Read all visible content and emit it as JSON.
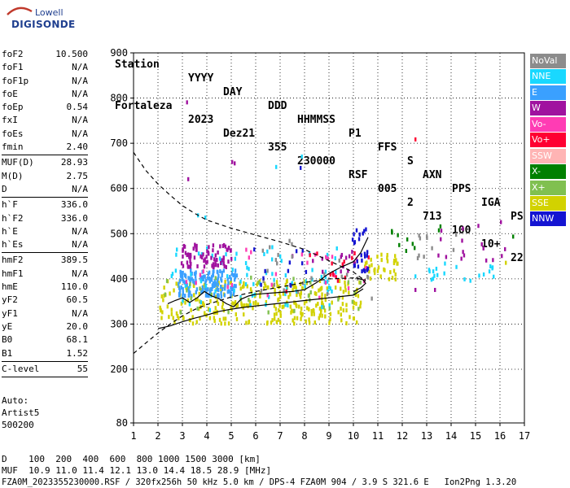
{
  "logo": {
    "line1": "Lowell",
    "line2": "DIGISONDE"
  },
  "header": {
    "labels": [
      "Station",
      "YYYY",
      "DAY",
      "DDD",
      "HHMMSS",
      "P1",
      "FFS",
      "S",
      "AXN",
      "PPS",
      "IGA",
      "PS"
    ],
    "values": [
      "Fortaleza",
      "2023",
      "Dez21",
      "355",
      "230000",
      "RSF",
      "005",
      "2",
      "713",
      "100",
      "10+",
      "22"
    ]
  },
  "params": [
    {
      "k": "foF2",
      "v": "10.500"
    },
    {
      "k": "foF1",
      "v": "N/A"
    },
    {
      "k": "foF1p",
      "v": "N/A"
    },
    {
      "k": "foE",
      "v": "N/A"
    },
    {
      "k": "foEp",
      "v": "0.54"
    },
    {
      "k": "fxI",
      "v": "N/A"
    },
    {
      "k": "foEs",
      "v": "N/A"
    },
    {
      "k": "fmin",
      "v": "2.40"
    },
    {
      "sep": true
    },
    {
      "k": "MUF(D)",
      "v": "28.93"
    },
    {
      "k": "M(D)",
      "v": "2.75"
    },
    {
      "k": "D",
      "v": "N/A"
    },
    {
      "sep": true
    },
    {
      "k": "h`F",
      "v": "336.0"
    },
    {
      "k": "h`F2",
      "v": "336.0"
    },
    {
      "k": "h`E",
      "v": "N/A"
    },
    {
      "k": "h`Es",
      "v": "N/A"
    },
    {
      "sep": true
    },
    {
      "k": "hmF2",
      "v": "389.5"
    },
    {
      "k": "hmF1",
      "v": "N/A"
    },
    {
      "k": "hmE",
      "v": "110.0"
    },
    {
      "k": "yF2",
      "v": "60.5"
    },
    {
      "k": "yF1",
      "v": "N/A"
    },
    {
      "k": "yE",
      "v": "20.0"
    },
    {
      "k": "B0",
      "v": "68.1"
    },
    {
      "k": "B1",
      "v": "1.52"
    },
    {
      "sep": true
    },
    {
      "k": "C-level",
      "v": "55"
    },
    {
      "sep": true
    }
  ],
  "auto": {
    "line1": "Auto:",
    "line2": "Artist5",
    "line3": "500200"
  },
  "legend": [
    {
      "name": "NoVal",
      "color": "#8c8c8c"
    },
    {
      "name": "NNE",
      "color": "#19d8ff"
    },
    {
      "name": "E",
      "color": "#3aa0ff"
    },
    {
      "name": "W",
      "color": "#a0129f"
    },
    {
      "name": "Vo-",
      "color": "#ff3cb4"
    },
    {
      "name": "Vo+",
      "color": "#ff0032"
    },
    {
      "name": "SSW",
      "color": "#ffb4b4"
    },
    {
      "name": "X-",
      "color": "#008000"
    },
    {
      "name": "X+",
      "color": "#80c050"
    },
    {
      "name": "SSE",
      "color": "#d2d200"
    },
    {
      "name": "NNW",
      "color": "#1414d2"
    }
  ],
  "footer": {
    "d_line": "D    100  200  400  600  800 1000 1500 3000 [km]",
    "muf_line": "MUF  10.9 11.0 11.4 12.1 13.0 14.4 18.5 28.9 [MHz]",
    "source_line": "FZA0M_2023355230000.RSF / 320fx256h 50 kHz 5.0 km / DPS-4 FZA0M 904 / 3.9 S 321.6 E   Ion2Png 1.3.20"
  },
  "chart_data": {
    "type": "scatter",
    "title": "",
    "xlabel": "",
    "ylabel": "",
    "xlim": [
      1,
      17
    ],
    "ylim": [
      80,
      900
    ],
    "grid": true,
    "xticks": [
      "1",
      "2",
      "3",
      "4",
      "5",
      "6",
      "7",
      "8",
      "9",
      "10",
      "11",
      "12",
      "13",
      "14",
      "15",
      "16",
      "17"
    ],
    "yticks": [
      "80",
      "200",
      "300",
      "400",
      "500",
      "600",
      "700",
      "800",
      "900"
    ],
    "ytick_values": [
      80,
      200,
      300,
      400,
      500,
      600,
      700,
      800,
      900
    ],
    "clusters": [
      {
        "color": "#d2d200",
        "x": [
          2.0,
          10.3
        ],
        "y": [
          305,
          400
        ],
        "n": 300
      },
      {
        "color": "#d2d200",
        "x": [
          10.3,
          11.8
        ],
        "y": [
          400,
          460
        ],
        "n": 35
      },
      {
        "color": "#3aa0ff",
        "x": [
          2.8,
          5.2
        ],
        "y": [
          365,
          425
        ],
        "n": 150
      },
      {
        "color": "#19d8ff",
        "x": [
          2.5,
          9.5
        ],
        "y": [
          335,
          480
        ],
        "n": 80
      },
      {
        "color": "#19d8ff",
        "x": [
          13.0,
          15.8
        ],
        "y": [
          400,
          440
        ],
        "n": 20
      },
      {
        "color": "#a0129f",
        "x": [
          2.9,
          5.0
        ],
        "y": [
          430,
          480
        ],
        "n": 80
      },
      {
        "color": "#a0129f",
        "x": [
          13.2,
          16.2
        ],
        "y": [
          440,
          525
        ],
        "n": 16
      },
      {
        "color": "#a0129f",
        "x": [
          7.0,
          10.5
        ],
        "y": [
          420,
          470
        ],
        "n": 15
      },
      {
        "color": "#ff3cb4",
        "x": [
          3.0,
          10.5
        ],
        "y": [
          360,
          480
        ],
        "n": 25
      },
      {
        "color": "#ff0032",
        "x": [
          7.2,
          10.6
        ],
        "y": [
          375,
          470
        ],
        "n": 15
      },
      {
        "color": "#8c8c8c",
        "x": [
          5.3,
          10.8
        ],
        "y": [
          360,
          500
        ],
        "n": 25
      },
      {
        "color": "#8c8c8c",
        "x": [
          12.4,
          14.2
        ],
        "y": [
          450,
          510
        ],
        "n": 10
      },
      {
        "color": "#1414d2",
        "x": [
          9.9,
          10.6
        ],
        "y": [
          420,
          515
        ],
        "n": 25
      },
      {
        "color": "#1414d2",
        "x": [
          5.4,
          8.4
        ],
        "y": [
          380,
          470
        ],
        "n": 12
      },
      {
        "color": "#008000",
        "x": [
          11.4,
          13.6
        ],
        "y": [
          465,
          525
        ],
        "n": 10
      },
      {
        "color": "#80c050",
        "x": [
          2.0,
          10.5
        ],
        "y": [
          330,
          410
        ],
        "n": 30
      }
    ],
    "sparse_points": [
      {
        "x": 3.15,
        "y": 795,
        "color": "#a0129f"
      },
      {
        "x": 3.2,
        "y": 625,
        "color": "#a0129f"
      },
      {
        "x": 5.0,
        "y": 663,
        "color": "#a0129f"
      },
      {
        "x": 5.1,
        "y": 660,
        "color": "#a0129f"
      },
      {
        "x": 12.5,
        "y": 713,
        "color": "#ff0032"
      },
      {
        "x": 7.85,
        "y": 675,
        "color": "#19d8ff"
      },
      {
        "x": 7.8,
        "y": 650,
        "color": "#1414d2"
      },
      {
        "x": 6.8,
        "y": 652,
        "color": "#19d8ff"
      },
      {
        "x": 3.6,
        "y": 545,
        "color": "#19d8ff"
      },
      {
        "x": 3.9,
        "y": 540,
        "color": "#19d8ff"
      },
      {
        "x": 16.0,
        "y": 530,
        "color": "#a0129f"
      },
      {
        "x": 16.5,
        "y": 498,
        "color": "#008000"
      },
      {
        "x": 12.5,
        "y": 380,
        "color": "#a0129f"
      },
      {
        "x": 13.3,
        "y": 380,
        "color": "#a0129f"
      },
      {
        "x": 12.5,
        "y": 410,
        "color": "#19d8ff"
      },
      {
        "x": 16.2,
        "y": 440,
        "color": "#d2d200"
      }
    ],
    "curves": [
      {
        "name": "",
        "style": "dashed",
        "points": [
          [
            1.0,
            680
          ],
          [
            1.5,
            640
          ],
          [
            2.0,
            610
          ],
          [
            2.5,
            585
          ],
          [
            3.0,
            562
          ],
          [
            3.5,
            545
          ],
          [
            4.0,
            530
          ],
          [
            5.0,
            512
          ],
          [
            6.0,
            497
          ],
          [
            7.0,
            482
          ],
          [
            8.0,
            465
          ],
          [
            9.0,
            440
          ],
          [
            10.0,
            415
          ],
          [
            10.5,
            395
          ]
        ]
      },
      {
        "name": "",
        "style": "dashed",
        "points": [
          [
            1.0,
            235
          ],
          [
            1.5,
            258
          ],
          [
            2.0,
            280
          ],
          [
            2.5,
            300
          ],
          [
            3.0,
            318
          ],
          [
            3.5,
            332
          ],
          [
            4.0,
            343
          ],
          [
            5.0,
            360
          ],
          [
            6.0,
            372
          ],
          [
            7.0,
            382
          ],
          [
            8.0,
            392
          ],
          [
            9.0,
            400
          ],
          [
            10.0,
            402
          ],
          [
            10.5,
            398
          ]
        ]
      },
      {
        "name": "",
        "style": "solid",
        "points": [
          [
            2.0,
            290
          ],
          [
            2.5,
            296
          ],
          [
            3.0,
            305
          ],
          [
            3.5,
            313
          ],
          [
            4.0,
            320
          ],
          [
            4.5,
            328
          ],
          [
            5.0,
            333
          ],
          [
            5.5,
            337
          ],
          [
            6.0,
            340
          ],
          [
            6.5,
            343
          ],
          [
            7.0,
            346
          ],
          [
            7.5,
            349
          ],
          [
            8.0,
            352
          ],
          [
            8.5,
            355
          ],
          [
            9.0,
            358
          ],
          [
            9.5,
            361
          ],
          [
            10.0,
            364
          ],
          [
            10.4,
            378
          ]
        ]
      },
      {
        "name": "",
        "style": "solid",
        "points": [
          [
            2.4,
            345
          ],
          [
            2.7,
            352
          ],
          [
            3.0,
            358
          ],
          [
            3.3,
            348
          ],
          [
            3.6,
            358
          ],
          [
            3.9,
            372
          ],
          [
            4.2,
            362
          ],
          [
            4.5,
            356
          ],
          [
            4.8,
            345
          ],
          [
            5.1,
            338
          ],
          [
            5.4,
            355
          ],
          [
            5.7,
            362
          ],
          [
            6.0,
            366
          ],
          [
            6.5,
            368
          ],
          [
            7.0,
            370
          ],
          [
            7.5,
            372
          ],
          [
            8.0,
            376
          ],
          [
            8.5,
            392
          ],
          [
            9.0,
            412
          ],
          [
            9.5,
            426
          ],
          [
            10.0,
            438
          ],
          [
            10.3,
            458
          ],
          [
            10.6,
            492
          ]
        ]
      },
      {
        "name": "",
        "style": "solid",
        "points": [
          [
            10.0,
            372
          ],
          [
            10.3,
            380
          ],
          [
            10.5,
            390
          ],
          [
            10.4,
            398
          ],
          [
            10.1,
            402
          ]
        ]
      }
    ]
  }
}
